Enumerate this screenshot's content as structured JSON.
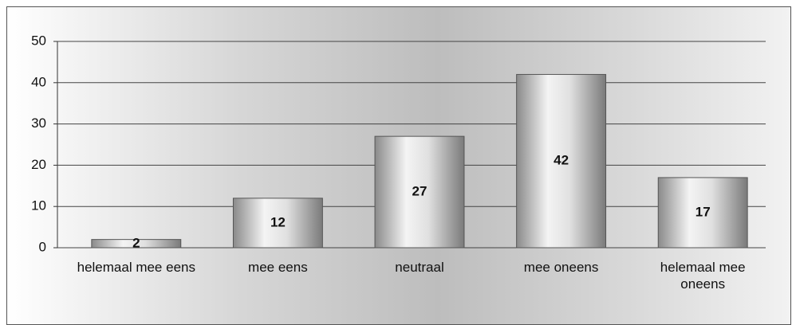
{
  "chart_data": {
    "type": "bar",
    "categories": [
      "helemaal mee eens",
      "mee eens",
      "neutraal",
      "mee oneens",
      "helemaal mee oneens"
    ],
    "values": [
      2,
      12,
      27,
      42,
      17
    ],
    "color": "#c8c8c8",
    "ylim": [
      0,
      50
    ],
    "yticks": [
      0,
      10,
      20,
      30,
      40,
      50
    ],
    "grid": true
  }
}
